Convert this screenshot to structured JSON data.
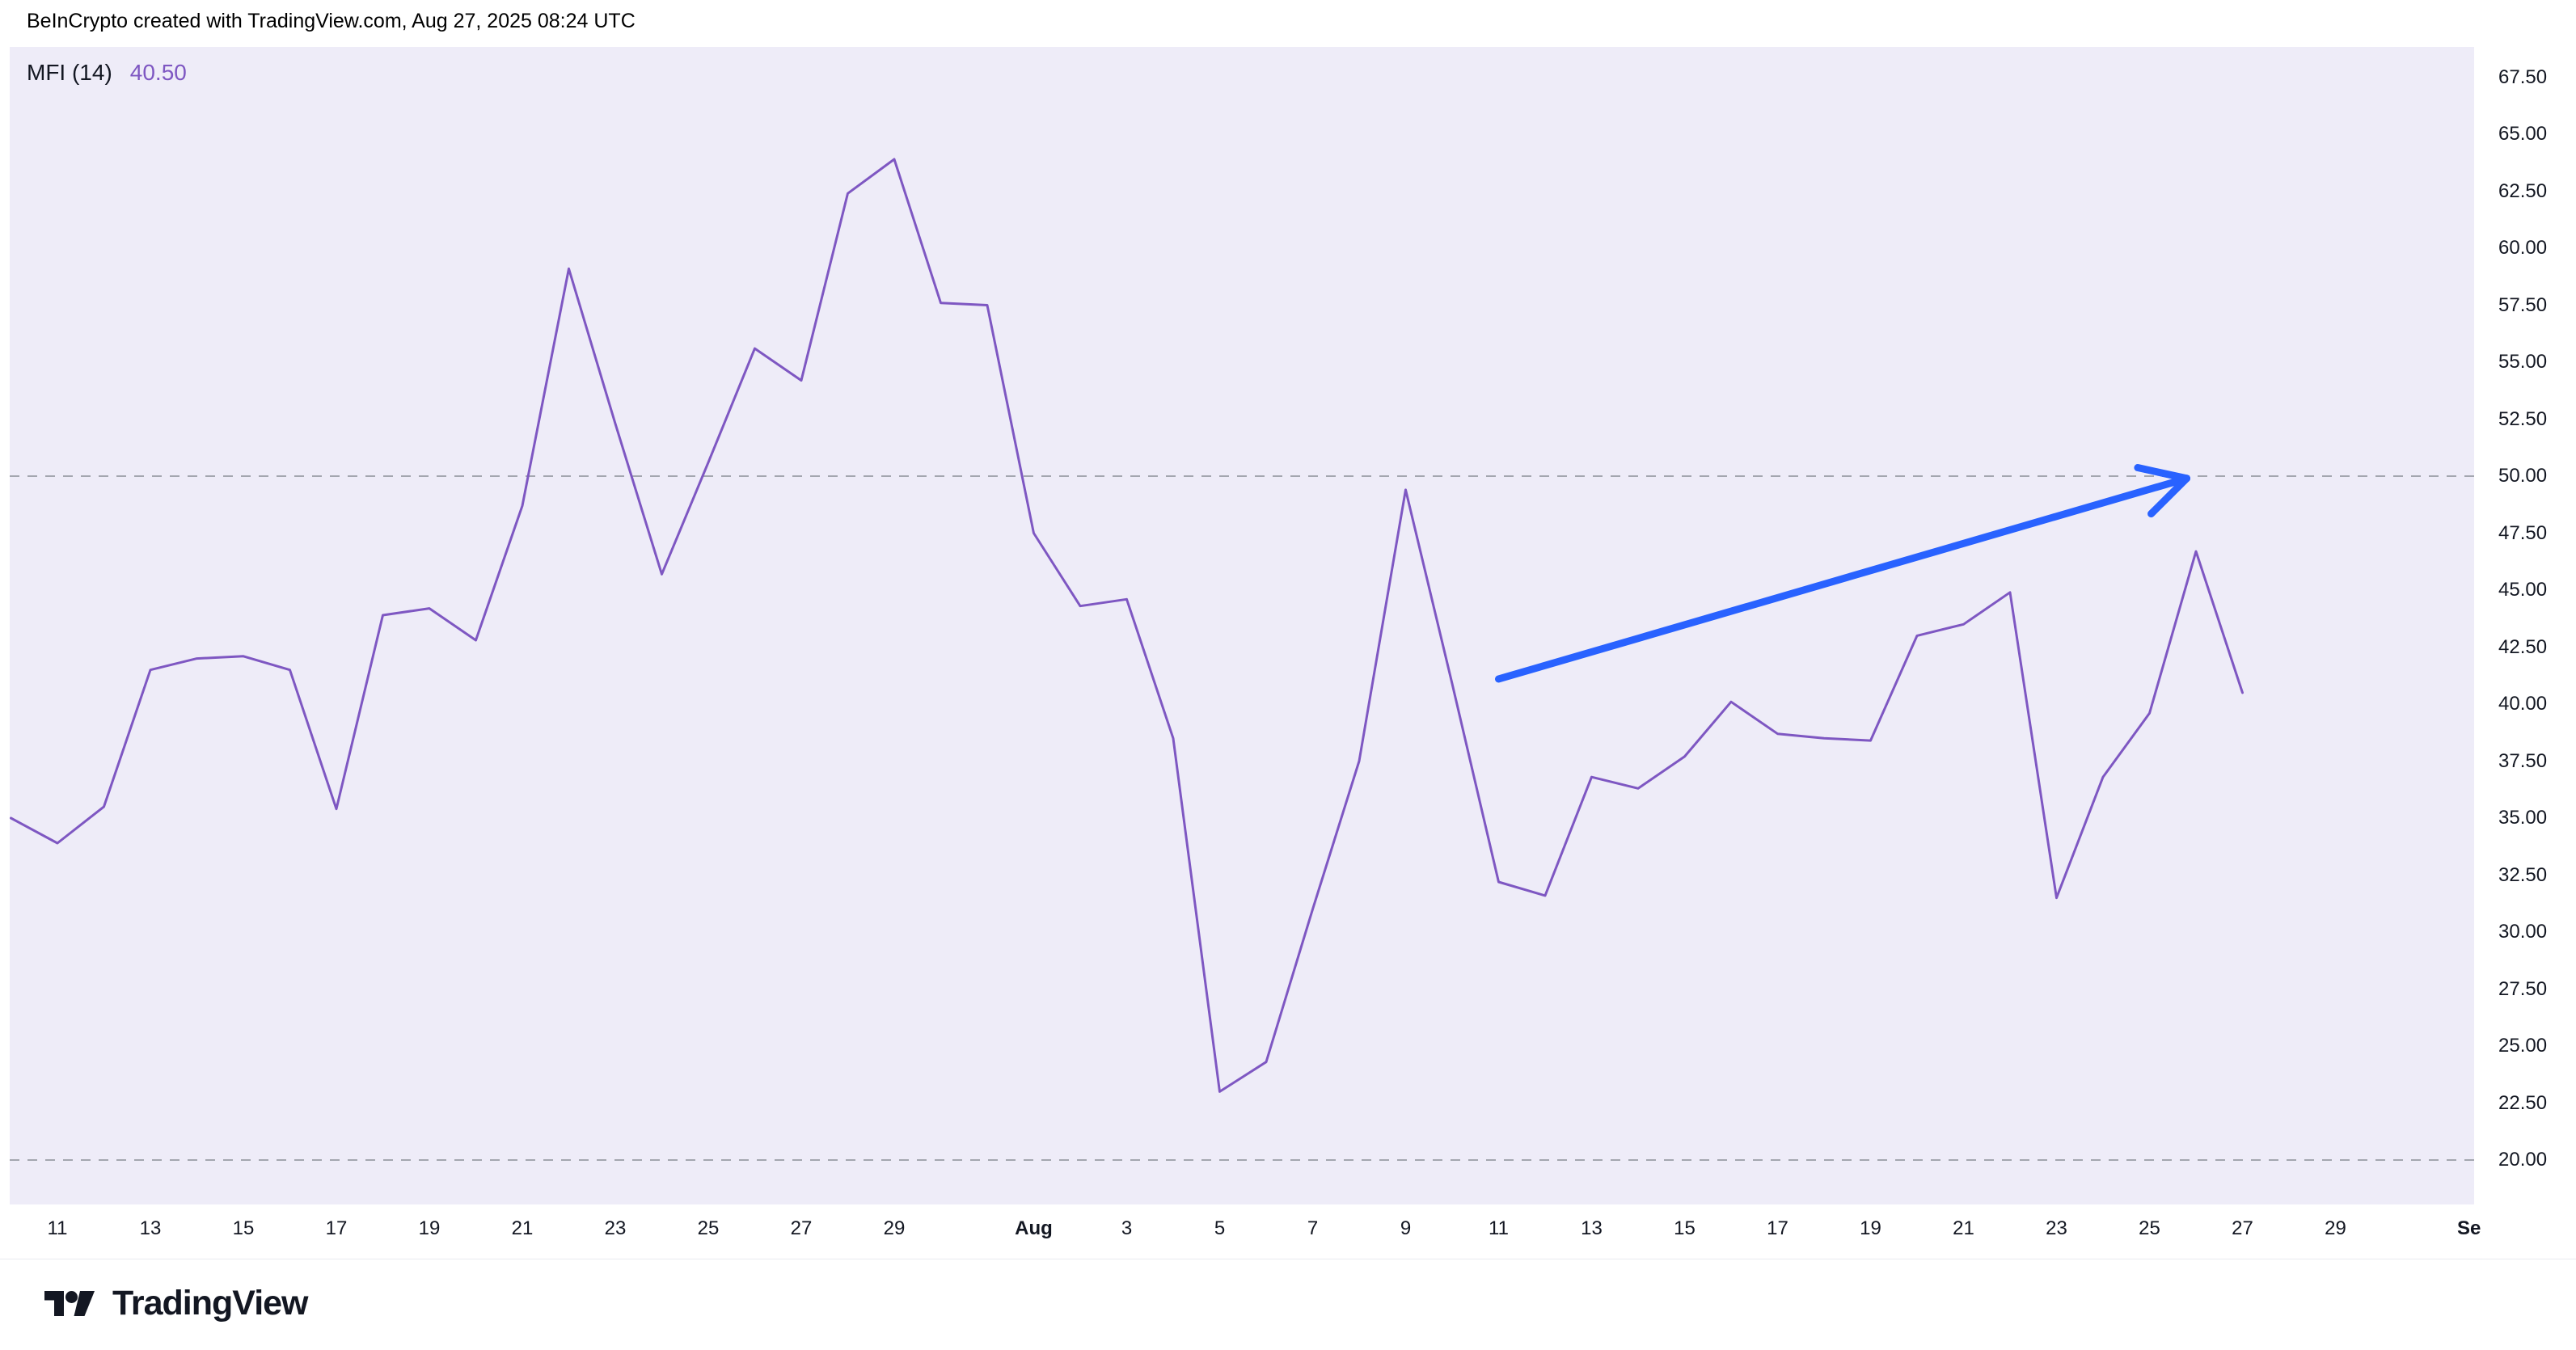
{
  "header": {
    "attribution": "BeInCrypto created with TradingView.com, Aug 27, 2025 08:24 UTC"
  },
  "indicator": {
    "label": "MFI (14)",
    "value": "40.50"
  },
  "chart_data": {
    "type": "line",
    "title": "MFI (14)",
    "series_name": "MFI",
    "x": [
      "Jul 10",
      "Jul 11",
      "Jul 12",
      "Jul 13",
      "Jul 14",
      "Jul 15",
      "Jul 16",
      "Jul 17",
      "Jul 18",
      "Jul 19",
      "Jul 20",
      "Jul 21",
      "Jul 22",
      "Jul 23",
      "Jul 24",
      "Jul 25",
      "Jul 26",
      "Jul 27",
      "Jul 28",
      "Jul 29",
      "Jul 30",
      "Jul 31",
      "Aug 1",
      "Aug 2",
      "Aug 3",
      "Aug 4",
      "Aug 5",
      "Aug 6",
      "Aug 7",
      "Aug 8",
      "Aug 9",
      "Aug 10",
      "Aug 11",
      "Aug 12",
      "Aug 13",
      "Aug 14",
      "Aug 15",
      "Aug 16",
      "Aug 17",
      "Aug 18",
      "Aug 19",
      "Aug 20",
      "Aug 21",
      "Aug 22",
      "Aug 23",
      "Aug 24",
      "Aug 25",
      "Aug 26",
      "Aug 27"
    ],
    "values": [
      35.0,
      33.9,
      35.5,
      41.5,
      42.0,
      42.1,
      41.5,
      35.4,
      43.9,
      44.2,
      42.8,
      48.7,
      59.1,
      52.3,
      45.7,
      50.6,
      55.6,
      54.2,
      62.4,
      63.9,
      57.6,
      57.5,
      47.5,
      44.3,
      44.6,
      38.5,
      23.0,
      24.3,
      31.0,
      37.5,
      49.4,
      40.9,
      32.2,
      31.6,
      36.8,
      36.3,
      37.7,
      40.1,
      38.7,
      38.5,
      38.4,
      43.0,
      43.5,
      44.9,
      31.5,
      36.8,
      39.6,
      46.7,
      40.5
    ],
    "ylim": [
      18.1,
      68.8
    ],
    "grid": "off",
    "legend_position": "none",
    "hlines": [
      {
        "value": 50.0,
        "style": "dashed"
      },
      {
        "value": 20.0,
        "style": "dashed"
      }
    ],
    "annotation_arrow": {
      "from_x": "Aug 11",
      "from_value": 41.1,
      "to_x": "Aug 26",
      "to_value": 49.9,
      "from_i": 32,
      "from_v": 41.1,
      "to_i": 46.8,
      "to_v": 49.9
    }
  },
  "y_axis": {
    "labels": [
      "67.50",
      "65.00",
      "62.50",
      "60.00",
      "57.50",
      "55.00",
      "52.50",
      "50.00",
      "47.50",
      "45.00",
      "42.50",
      "40.00",
      "37.50",
      "35.00",
      "32.50",
      "30.00",
      "27.50",
      "25.00",
      "22.50",
      "20.00"
    ]
  },
  "x_axis": {
    "labels": [
      {
        "text": "11",
        "i": 1,
        "bold": false
      },
      {
        "text": "13",
        "i": 3,
        "bold": false
      },
      {
        "text": "15",
        "i": 5,
        "bold": false
      },
      {
        "text": "17",
        "i": 7,
        "bold": false
      },
      {
        "text": "19",
        "i": 9,
        "bold": false
      },
      {
        "text": "21",
        "i": 11,
        "bold": false
      },
      {
        "text": "23",
        "i": 13,
        "bold": false
      },
      {
        "text": "25",
        "i": 15,
        "bold": false
      },
      {
        "text": "27",
        "i": 17,
        "bold": false
      },
      {
        "text": "29",
        "i": 19,
        "bold": false
      },
      {
        "text": "Aug",
        "i": 22,
        "bold": true
      },
      {
        "text": "3",
        "i": 24,
        "bold": false
      },
      {
        "text": "5",
        "i": 26,
        "bold": false
      },
      {
        "text": "7",
        "i": 28,
        "bold": false
      },
      {
        "text": "9",
        "i": 30,
        "bold": false
      },
      {
        "text": "11",
        "i": 32,
        "bold": false
      },
      {
        "text": "13",
        "i": 34,
        "bold": false
      },
      {
        "text": "15",
        "i": 36,
        "bold": false
      },
      {
        "text": "17",
        "i": 38,
        "bold": false
      },
      {
        "text": "19",
        "i": 40,
        "bold": false
      },
      {
        "text": "21",
        "i": 42,
        "bold": false
      },
      {
        "text": "23",
        "i": 44,
        "bold": false
      },
      {
        "text": "25",
        "i": 46,
        "bold": false
      },
      {
        "text": "27",
        "i": 48,
        "bold": false
      },
      {
        "text": "29",
        "i": 50,
        "bold": false
      },
      {
        "text": "Sep",
        "i": 53,
        "bold": true
      }
    ]
  },
  "footer": {
    "brand": "TradingView"
  },
  "colors": {
    "line": "#7e57c2",
    "value_text": "#7e57c2",
    "arrow": "#2962ff",
    "panel_bg": "#eeecf8",
    "dashed": "#a3a6af",
    "text": "#131722"
  }
}
